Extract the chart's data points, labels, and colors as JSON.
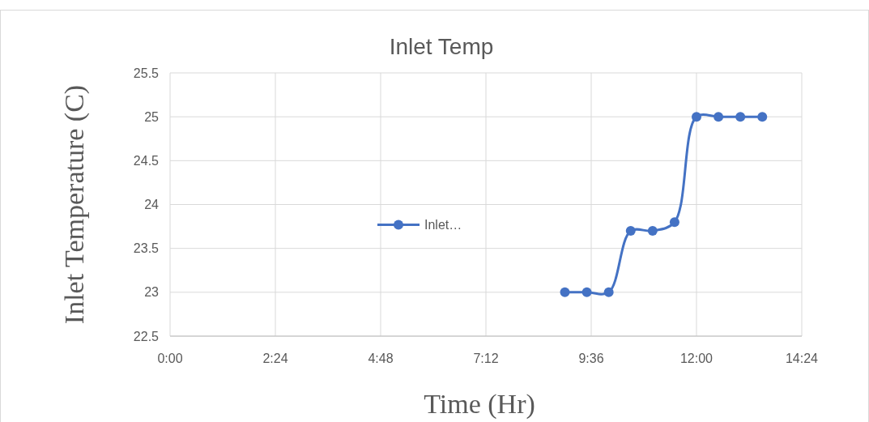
{
  "chart_data": {
    "type": "line",
    "title": "Inlet Temp",
    "xlabel": "Time (Hr)",
    "ylabel": "Inlet Temperature (C)",
    "x": [
      9,
      9.5,
      10,
      10.5,
      11,
      11.5,
      12,
      12.5,
      13,
      13.5
    ],
    "series": [
      {
        "name": "Inlet…",
        "color": "#4472c4",
        "values": [
          23,
          23,
          23,
          23.7,
          23.7,
          23.8,
          25,
          25,
          25,
          25
        ]
      }
    ],
    "xlim": [
      0,
      14.4
    ],
    "xticks": [
      {
        "value": 0,
        "label": "0:00"
      },
      {
        "value": 2.4,
        "label": "2:24"
      },
      {
        "value": 4.8,
        "label": "4:48"
      },
      {
        "value": 7.2,
        "label": "7:12"
      },
      {
        "value": 9.6,
        "label": "9:36"
      },
      {
        "value": 12,
        "label": "12:00"
      },
      {
        "value": 14.4,
        "label": "14:24"
      }
    ],
    "ylim": [
      22.5,
      25.5
    ],
    "yticks": [
      22.5,
      23,
      23.5,
      24,
      24.5,
      25,
      25.5
    ],
    "grid": true,
    "legend": "center",
    "marker": "circle",
    "line_style": "solid"
  }
}
